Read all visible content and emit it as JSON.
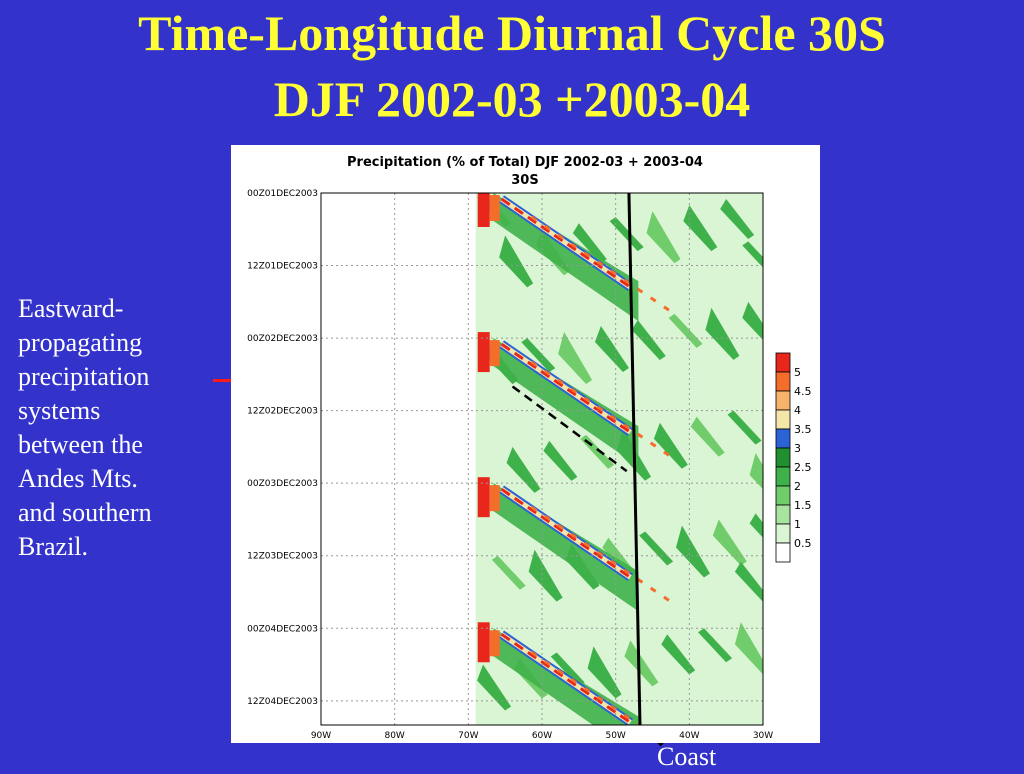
{
  "slide": {
    "title_line1": "Time-Longitude Diurnal Cycle 30S",
    "title_line2": "DJF 2002-03 +2003-04",
    "annotation_lines": [
      "Eastward-",
      "propagating",
      "precipitation",
      "systems",
      "between the",
      "Andes Mts.",
      "and southern",
      "Brazil."
    ],
    "coast_label": "Coast"
  },
  "chart_data": {
    "type": "heatmap",
    "title": "Precipitation (% of Total) DJF 2002-03 + 2003-04",
    "subtitle": "30S",
    "x_ticks": [
      "90W",
      "80W",
      "70W",
      "60W",
      "50W",
      "40W",
      "30W"
    ],
    "y_ticks": [
      "00Z01DEC2003",
      "12Z01DEC2003",
      "00Z02DEC2003",
      "12Z02DEC2003",
      "00Z03DEC2003",
      "12Z03DEC2003",
      "00Z04DEC2003",
      "12Z04DEC2003"
    ],
    "xlim": [
      -90,
      -30
    ],
    "ylim_hours": [
      0,
      88
    ],
    "colorbar": {
      "levels": [
        "5",
        "4.5",
        "4",
        "3.5",
        "3",
        "2.5",
        "2",
        "1.5",
        "1",
        "0.5"
      ],
      "colors": [
        "#e8261b",
        "#f46d2a",
        "#f7b36b",
        "#f3e6a8",
        "#2b63d6",
        "#1f8f2f",
        "#3fb14a",
        "#71cd6c",
        "#a8e3a0",
        "#d9f5d3",
        "#ffffff"
      ]
    },
    "coast_line": {
      "lon_start": -48.2,
      "lon_end": -46.7
    },
    "propagation_line": {
      "lon_start": -64.0,
      "hour_start": 32,
      "lon_end": -48.5,
      "hour_end": 46
    },
    "cycles": [
      {
        "hour": 0,
        "lon_start": -65.5,
        "lon_end": -48.0,
        "speed_deg_per_hr": 1.2
      },
      {
        "hour": 24,
        "lon_start": -65.5,
        "lon_end": -48.0,
        "speed_deg_per_hr": 1.2
      },
      {
        "hour": 48,
        "lon_start": -65.5,
        "lon_end": -48.0,
        "speed_deg_per_hr": 1.2
      },
      {
        "hour": 72,
        "lon_start": -65.5,
        "lon_end": -48.0,
        "speed_deg_per_hr": 1.2
      }
    ],
    "grid": true
  }
}
